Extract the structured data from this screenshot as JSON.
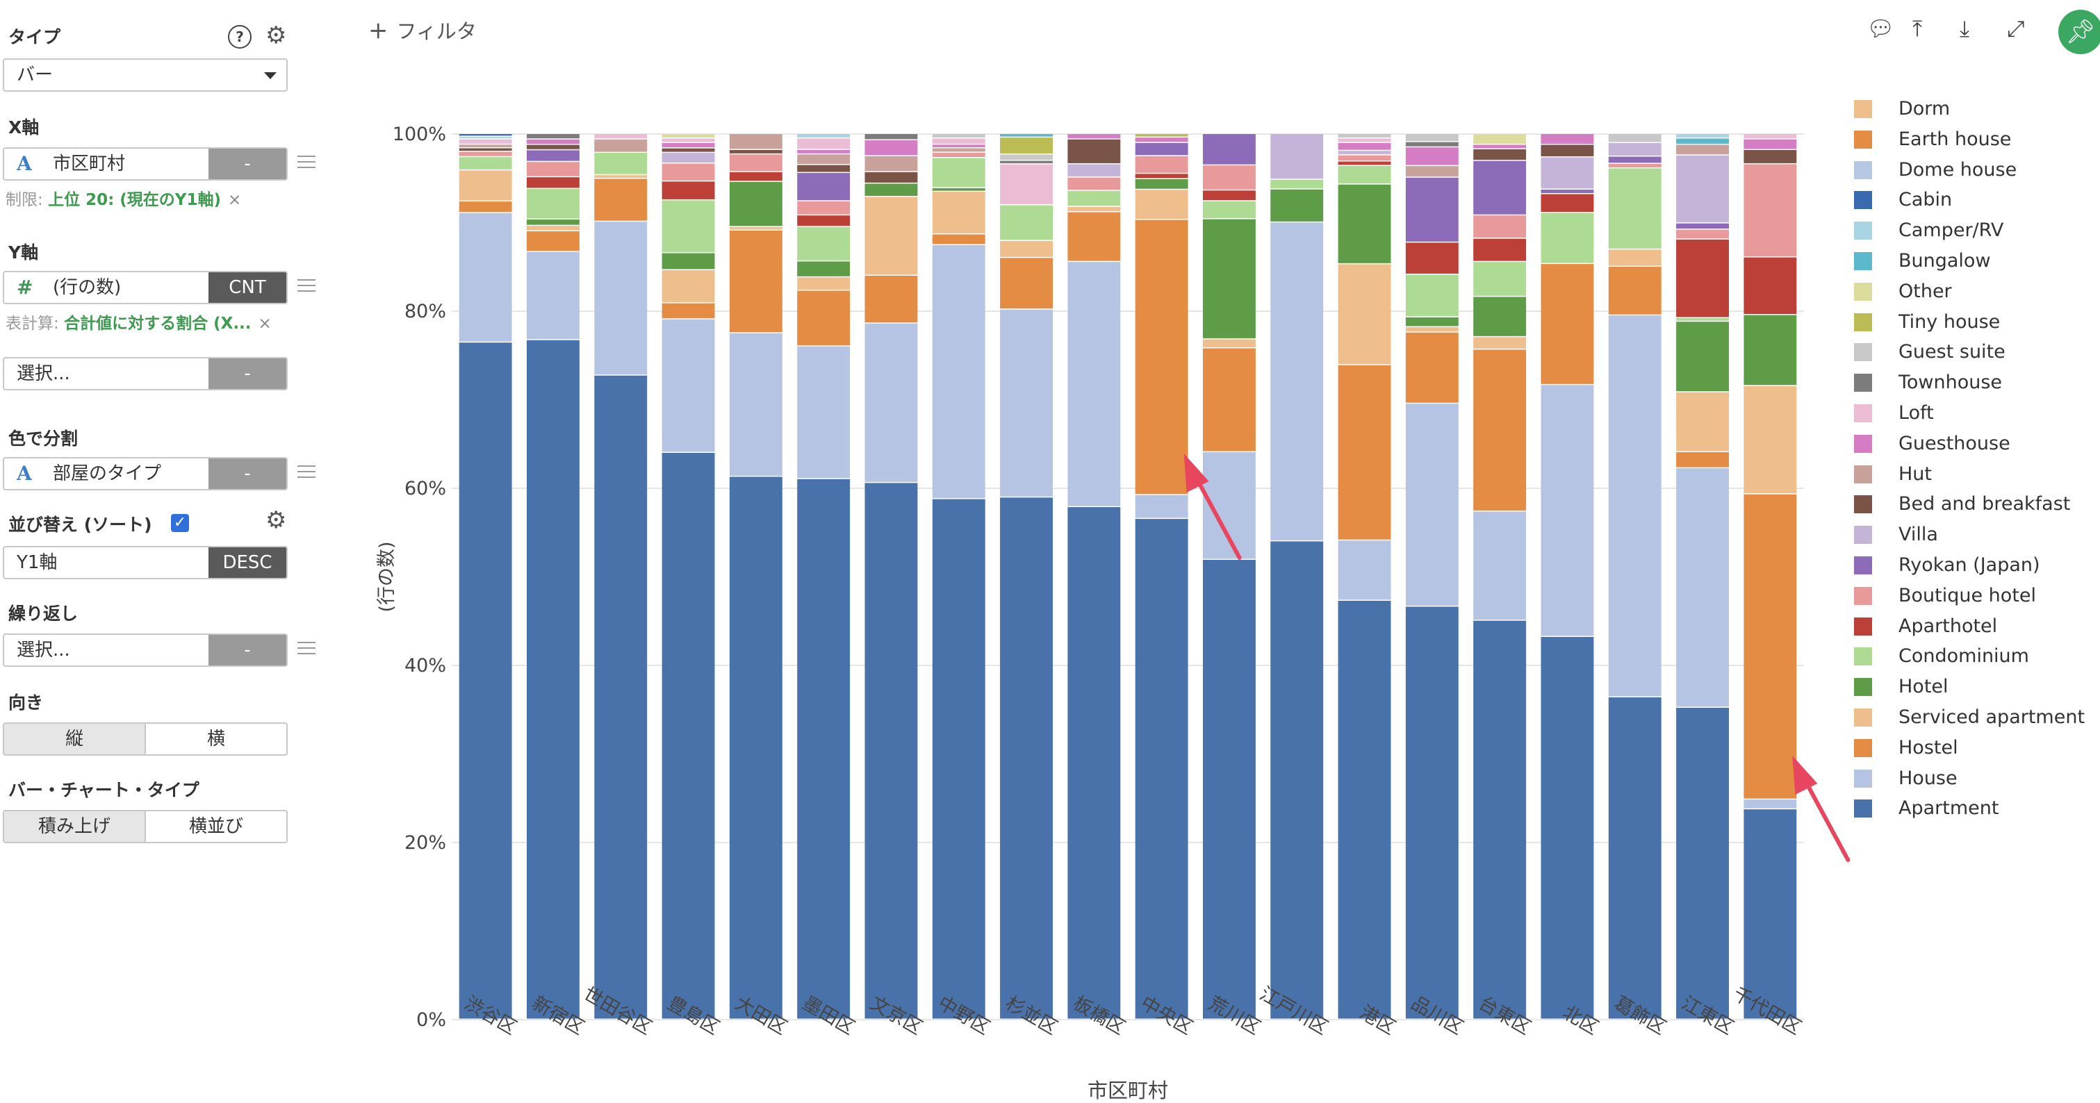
{
  "sidebar": {
    "type_title": "タイプ",
    "type_value": "バー",
    "x_title": "X軸",
    "x_field": "市区町村",
    "x_agg": "-",
    "x_note_prefix": "制限: ",
    "x_note_value": "上位 20: (現在のY1軸)",
    "y_title": "Y軸",
    "y_field": "(行の数)",
    "y_agg": "CNT",
    "y_note_prefix": "表計算: ",
    "y_note_value": "合計値に対する割合 (X...",
    "y2_placeholder": "選択...",
    "y2_agg": "-",
    "color_title": "色で分割",
    "color_field": "部屋のタイプ",
    "color_agg": "-",
    "sort_title": "並び替え (ソート)",
    "sort_field": "Y1軸",
    "sort_order": "DESC",
    "repeat_title": "繰り返し",
    "repeat_placeholder": "選択...",
    "repeat_agg": "-",
    "orientation_title": "向き",
    "orientation_options": [
      "縦",
      "横"
    ],
    "bartype_title": "バー・チャート・タイプ",
    "bartype_options": [
      "積み上げ",
      "横並び"
    ],
    "close_glyph": "×"
  },
  "toolbar": {
    "filter_label": "フィルタ"
  },
  "chart_data": {
    "type": "bar",
    "stacking": "percent",
    "xlabel": "市区町村",
    "ylabel": "(行の数)",
    "ylim": [
      0,
      100
    ],
    "yticks": [
      "0%",
      "20%",
      "40%",
      "60%",
      "80%",
      "100%"
    ],
    "categories": [
      "渋谷区",
      "新宿区",
      "世田谷区",
      "豊島区",
      "大田区",
      "墨田区",
      "文京区",
      "中野区",
      "杉並区",
      "板橋区",
      "中央区",
      "荒川区",
      "江戸川区",
      "港区",
      "品川区",
      "台東区",
      "北区",
      "葛飾区",
      "江東区",
      "千代田区"
    ],
    "series": [
      {
        "name": "Apartment",
        "color": "#4a72aa",
        "values": [
          76.3,
          75.5,
          72.0,
          63.3,
          61.3,
          61.1,
          60.6,
          58.6,
          58.6,
          57.7,
          56.6,
          51.3,
          49.2,
          47.3,
          46.4,
          44.6,
          42.7,
          35.7,
          34.9,
          23.7
        ]
      },
      {
        "name": "House",
        "color": "#b6c4e4",
        "values": [
          14.6,
          9.8,
          17.2,
          14.9,
          16.2,
          15.0,
          18.0,
          28.6,
          21.1,
          27.6,
          2.7,
          12.0,
          32.8,
          6.8,
          22.8,
          12.2,
          28.1,
          42.3,
          26.8,
          1.1
        ]
      },
      {
        "name": "Hostel",
        "color": "#e48c44",
        "values": [
          1.3,
          2.3,
          4.8,
          1.8,
          11.6,
          6.3,
          5.4,
          1.2,
          5.8,
          5.6,
          31.1,
          11.6,
          0,
          19.8,
          8.0,
          18.1,
          13.5,
          5.4,
          1.8,
          34.4
        ]
      },
      {
        "name": "Serviced apartment",
        "color": "#eebf8c",
        "values": [
          3.5,
          0.6,
          0.4,
          3.7,
          0.4,
          1.5,
          8.9,
          4.8,
          1.9,
          0.6,
          3.4,
          1.0,
          0,
          11.4,
          0.6,
          1.4,
          0,
          1.9,
          6.7,
          12.2
        ]
      },
      {
        "name": "Hotel",
        "color": "#5e9c48",
        "values": [
          0,
          0.7,
          0,
          1.9,
          5.1,
          1.8,
          1.5,
          0.4,
          0,
          0,
          1.2,
          13.4,
          3.4,
          9.0,
          1.1,
          4.5,
          0,
          0,
          7.9,
          8.0
        ]
      },
      {
        "name": "Condominium",
        "color": "#addb94",
        "values": [
          1.5,
          3.4,
          2.5,
          5.9,
          0,
          3.9,
          0,
          3.4,
          4.0,
          1.8,
          0,
          2.0,
          1.0,
          2.1,
          4.8,
          3.9,
          5.7,
          9.0,
          0.4,
          0
        ]
      },
      {
        "name": "Aparthotel",
        "color": "#bc4038",
        "values": [
          0,
          1.3,
          0,
          2.1,
          1.1,
          1.3,
          0,
          0,
          0,
          0,
          0.6,
          1.2,
          0,
          0.5,
          3.6,
          2.6,
          2.1,
          0,
          8.8,
          6.5
        ]
      },
      {
        "name": "Boutique hotel",
        "color": "#e8999a",
        "values": [
          0.6,
          1.7,
          0,
          2.0,
          2.0,
          1.6,
          0,
          0.6,
          0,
          1.5,
          2.0,
          2.8,
          0,
          0.7,
          0,
          2.6,
          0,
          0.5,
          1.1,
          10.5
        ]
      },
      {
        "name": "Ryokan (Japan)",
        "color": "#8c6cb8",
        "values": [
          0,
          1.3,
          0,
          0,
          0,
          3.2,
          0,
          0,
          0,
          0,
          1.5,
          3.5,
          0,
          0,
          7.3,
          6.1,
          0.5,
          0.8,
          0.7,
          0
        ]
      },
      {
        "name": "Villa",
        "color": "#c4b4d8",
        "values": [
          0,
          0,
          0,
          1.2,
          0,
          0,
          0,
          0,
          0,
          1.5,
          0,
          0,
          4.7,
          0.5,
          0,
          0,
          3.6,
          1.5,
          7.6,
          0
        ]
      },
      {
        "name": "Bed and breakfast",
        "color": "#7b5448",
        "values": [
          0.4,
          0.6,
          0,
          0.5,
          0.5,
          0.9,
          1.3,
          0,
          0,
          2.8,
          0,
          0,
          0,
          0,
          0,
          1.3,
          1.4,
          0,
          0,
          1.6
        ]
      },
      {
        "name": "Hut",
        "color": "#c8a29a",
        "values": [
          0.4,
          0,
          1.5,
          0,
          1.8,
          1.2,
          1.8,
          0.5,
          0,
          0,
          0,
          0,
          0,
          0,
          1.3,
          0,
          0,
          0,
          1.2,
          0
        ]
      },
      {
        "name": "Guesthouse",
        "color": "#d47cc4",
        "values": [
          0,
          0.6,
          0,
          0.6,
          0,
          0.5,
          1.8,
          0.4,
          0,
          0.6,
          0.6,
          0,
          0,
          0.9,
          2.1,
          0.5,
          1.2,
          0,
          0,
          1.2
        ]
      },
      {
        "name": "Loft",
        "color": "#ecbcd4",
        "values": [
          0.6,
          0,
          0.6,
          0.5,
          0,
          1.3,
          0,
          0.7,
          4.6,
          0,
          0,
          0,
          0,
          0.5,
          0,
          0,
          0,
          0,
          0,
          0.6
        ]
      },
      {
        "name": "Townhouse",
        "color": "#7c7c7c",
        "values": [
          0,
          0.6,
          0,
          0,
          0,
          0,
          0.7,
          0,
          0.4,
          0,
          0,
          0,
          0,
          0,
          0.6,
          0,
          0,
          0,
          0,
          0
        ]
      },
      {
        "name": "Guest suite",
        "color": "#c8c8c8",
        "values": [
          0,
          0,
          0,
          0,
          0,
          0,
          0,
          0.5,
          0.7,
          0,
          0,
          0,
          0,
          0.5,
          0.9,
          0,
          0,
          1.0,
          0,
          0
        ]
      },
      {
        "name": "Tiny house",
        "color": "#bcbc54",
        "values": [
          0,
          0,
          0,
          0,
          0,
          0,
          0,
          0,
          1.9,
          0,
          0.4,
          0,
          0,
          0,
          0,
          0,
          0,
          0,
          0,
          0
        ]
      },
      {
        "name": "Other",
        "color": "#dcdc9c",
        "values": [
          0,
          0,
          0,
          0.5,
          0,
          0,
          0,
          0,
          0,
          0,
          0,
          0,
          0,
          0,
          0,
          1.2,
          0,
          0,
          0,
          0
        ]
      },
      {
        "name": "Bungalow",
        "color": "#5cb8cc",
        "values": [
          0,
          0,
          0,
          0,
          0,
          0,
          0,
          0,
          0.4,
          0,
          0,
          0,
          0,
          0,
          0,
          0,
          0,
          0,
          0.7,
          0
        ]
      },
      {
        "name": "Camper/RV",
        "color": "#a8d4e4",
        "values": [
          0.3,
          0,
          0,
          0,
          0,
          0.5,
          0,
          0,
          0,
          0,
          0,
          0,
          0,
          0,
          0,
          0,
          0,
          0,
          0.5,
          0
        ]
      },
      {
        "name": "Cabin",
        "color": "#3a6ab0",
        "values": [
          0.3,
          0,
          0,
          0,
          0,
          0,
          0,
          0,
          0,
          0,
          0,
          0,
          0,
          0,
          0,
          0,
          0,
          0,
          0,
          0
        ]
      },
      {
        "name": "Dome house",
        "color": "#b6c8e4",
        "values": [
          0,
          0,
          0,
          0,
          0,
          0,
          0,
          0,
          0,
          0,
          0,
          0,
          0,
          0,
          0,
          0,
          0,
          0,
          0,
          0
        ]
      },
      {
        "name": "Earth house",
        "color": "#e48c44",
        "values": [
          0,
          0,
          0,
          0,
          0,
          0,
          0,
          0,
          0,
          0,
          0,
          0,
          0,
          0,
          0,
          0,
          0,
          0,
          0,
          0
        ]
      },
      {
        "name": "Dorm",
        "color": "#eebf8c",
        "values": [
          0,
          0,
          0,
          0,
          0,
          0,
          0,
          0,
          0,
          0,
          0,
          0,
          0,
          0,
          0,
          0,
          0,
          0,
          0,
          0
        ]
      }
    ],
    "legend_order": [
      "Dorm",
      "Earth house",
      "Dome house",
      "Cabin",
      "Camper/RV",
      "Bungalow",
      "Other",
      "Tiny house",
      "Guest suite",
      "Townhouse",
      "Loft",
      "Guesthouse",
      "Hut",
      "Bed and breakfast",
      "Villa",
      "Ryokan (Japan)",
      "Boutique hotel",
      "Aparthotel",
      "Condominium",
      "Hotel",
      "Serviced apartment",
      "Hostel",
      "House",
      "Apartment"
    ],
    "legend_position": "right",
    "annotations": [
      {
        "type": "arrow",
        "target_category": "中央区",
        "target_series": "Hostel",
        "color": "#e8455f"
      },
      {
        "type": "arrow",
        "target_category": "千代田区",
        "target_series": "Hostel",
        "color": "#e8455f"
      }
    ]
  }
}
